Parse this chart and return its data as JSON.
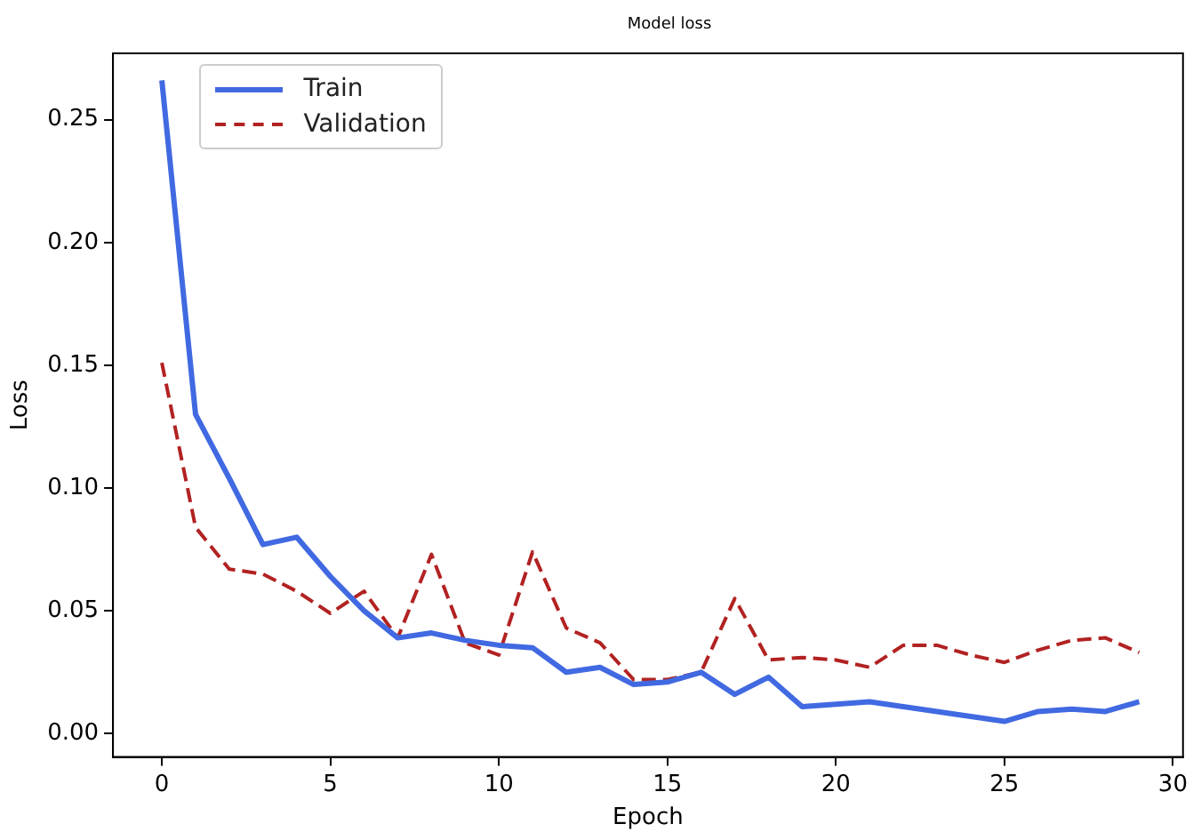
{
  "chart_data": {
    "type": "line",
    "title": "Model loss",
    "xlabel": "Epoch",
    "ylabel": "Loss",
    "x": [
      0,
      1,
      2,
      3,
      4,
      5,
      6,
      7,
      8,
      9,
      10,
      11,
      12,
      13,
      14,
      15,
      16,
      17,
      18,
      19,
      20,
      21,
      22,
      23,
      24,
      25,
      26,
      27,
      28,
      29
    ],
    "series": [
      {
        "name": "Train",
        "color": "#4169e1",
        "line_style": "solid",
        "values": [
          0.266,
          0.13,
          0.104,
          0.077,
          0.08,
          0.064,
          0.05,
          0.039,
          0.041,
          0.038,
          0.036,
          0.035,
          0.025,
          0.027,
          0.02,
          0.021,
          0.025,
          0.016,
          0.023,
          0.011,
          0.012,
          0.013,
          0.011,
          0.009,
          0.007,
          0.005,
          0.009,
          0.01,
          0.009,
          0.013
        ]
      },
      {
        "name": "Validation",
        "color": "#b22222",
        "line_style": "dashed",
        "values": [
          0.151,
          0.084,
          0.067,
          0.065,
          0.058,
          0.049,
          0.058,
          0.039,
          0.073,
          0.037,
          0.032,
          0.074,
          0.043,
          0.037,
          0.022,
          0.022,
          0.025,
          0.055,
          0.03,
          0.031,
          0.03,
          0.027,
          0.036,
          0.036,
          0.032,
          0.029,
          0.034,
          0.038,
          0.039,
          0.033
        ]
      }
    ],
    "xlim": [
      -1.45,
      30.3
    ],
    "xticks": [
      0,
      5,
      10,
      15,
      20,
      25,
      30
    ],
    "ylim": [
      -0.0095,
      0.277
    ],
    "yticks": [
      {
        "value": 0,
        "label": "0.00"
      },
      {
        "value": 0.05,
        "label": "0.05"
      },
      {
        "value": 0.1,
        "label": "0.10"
      },
      {
        "value": 0.15,
        "label": "0.15"
      },
      {
        "value": 0.2,
        "label": "0.20"
      },
      {
        "value": 0.25,
        "label": "0.25"
      }
    ],
    "grid": false,
    "legend": "top left",
    "marker": "none"
  }
}
